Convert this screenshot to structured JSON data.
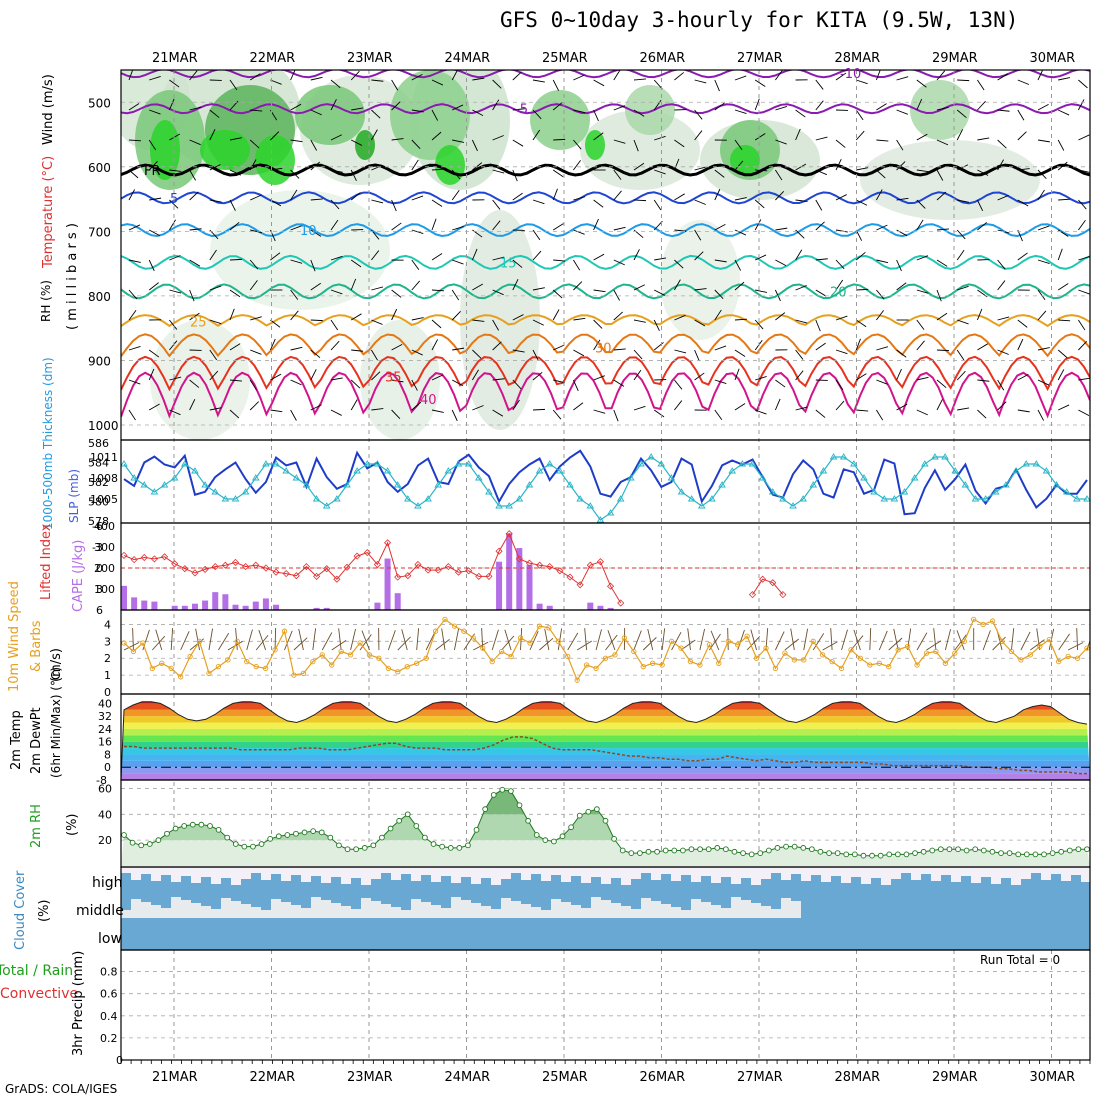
{
  "title": "GFS 0~10day 3-hourly for KITA (9.5W, 13N)",
  "credit": "GrADS: COLA/IGES",
  "dates": [
    "21MAR",
    "22MAR",
    "23MAR",
    "24MAR",
    "25MAR",
    "26MAR",
    "27MAR",
    "28MAR",
    "29MAR",
    "30MAR"
  ],
  "chart_data": [
    {
      "type": "heatmap",
      "panel": "upper-air",
      "ylabels": [
        "RH (%)",
        "Temperature (°C)",
        "Wind (m/s)",
        "( m i l l i b a r s )"
      ],
      "ylim": [
        1000,
        450
      ],
      "yticks": [
        500,
        600,
        700,
        800,
        900,
        1000
      ],
      "isotherms": [
        {
          "label": "-10",
          "p": 455,
          "color": "#8a1ab0"
        },
        {
          "label": "-5",
          "p": 510,
          "color": "#8a1ab0"
        },
        {
          "label": "FR",
          "p": 605,
          "color": "#000000"
        },
        {
          "label": "5",
          "p": 648,
          "color": "#1e46d2"
        },
        {
          "label": "10",
          "p": 698,
          "color": "#1e9be6"
        },
        {
          "label": "15",
          "p": 748,
          "color": "#1ec8b4"
        },
        {
          "label": "20",
          "p": 793,
          "color": "#1eb48c"
        },
        {
          "label": "25",
          "p": 840,
          "color": "#e6a01e"
        },
        {
          "label": "30",
          "p": 880,
          "color": "#e67814"
        },
        {
          "label": "35",
          "p": 925,
          "color": "#e6321e"
        },
        {
          "label": "40",
          "p": 960,
          "color": "#d2148c"
        }
      ],
      "rh_contours": [
        "30",
        "50",
        "60"
      ]
    },
    {
      "type": "line",
      "panel": "slp-thickness",
      "ylabels": [
        "1000-500mb Thickness (dm)",
        "SLP (mb)"
      ],
      "thickness_ticks": [
        578,
        580,
        582,
        584,
        586
      ],
      "slp_ticks": [
        1005,
        1008,
        1011
      ],
      "series": [
        {
          "values": [
            582.3,
            581.6,
            584,
            584.6,
            583.8,
            583.5,
            584.7,
            580.7,
            581,
            582.5,
            583.3,
            584,
            582.3,
            580.9,
            582,
            584.5,
            583.7,
            584,
            581.5,
            584.4,
            582.5,
            581.3,
            581.8,
            585,
            583.4,
            584,
            582,
            581,
            581.8,
            583.7,
            584.4,
            582,
            581.8,
            584.1,
            584.8,
            583.5,
            582.6,
            580,
            581.8,
            583,
            583.8,
            584.4,
            582.2,
            583.6,
            584.5,
            585.2,
            583.6,
            580.8,
            580.5,
            582,
            582.5,
            584.4,
            583.2,
            581.5,
            582,
            584.4,
            583.8,
            580,
            581.6,
            583.7,
            584.2,
            583.8,
            584.3,
            582.5,
            580.7,
            580.4,
            582.8,
            584.2,
            583.3,
            580.8,
            580.4,
            583.3,
            583,
            580.8,
            581.2,
            584.3,
            583.9,
            578.7,
            578.8,
            581.4,
            583.2,
            581.2,
            582.3,
            583.8,
            581.1,
            579.8,
            581.3,
            581.6,
            583.3,
            581.2,
            579.4,
            580.3,
            581.7,
            580.8,
            580.8,
            582.2
          ]
        },
        {
          "values": [
            1010,
            1008,
            1007,
            1006,
            1007,
            1008,
            1010,
            1009,
            1007,
            1006,
            1005,
            1005,
            1006,
            1008,
            1010,
            1010,
            1009,
            1008,
            1007,
            1005,
            1004,
            1005,
            1007,
            1009,
            1010,
            1010,
            1009,
            1007,
            1005,
            1004,
            1005,
            1007,
            1009,
            1010,
            1010,
            1008,
            1006,
            1004,
            1004,
            1005,
            1007,
            1009,
            1010,
            1009,
            1007,
            1005,
            1004,
            1002,
            1003,
            1005,
            1008,
            1010,
            1011,
            1010,
            1008,
            1006,
            1005,
            1004,
            1005,
            1007,
            1009,
            1010,
            1010,
            1008,
            1006,
            1005,
            1004,
            1005,
            1007,
            1009,
            1011,
            1011,
            1010,
            1008,
            1006,
            1005,
            1005,
            1006,
            1008,
            1010,
            1011,
            1011,
            1009,
            1007,
            1005,
            1005,
            1006,
            1007,
            1009,
            1010,
            1010,
            1009,
            1007,
            1006,
            1005,
            1005
          ]
        }
      ]
    },
    {
      "type": "bar",
      "panel": "cape-li",
      "ylabels": [
        "Lifted Index",
        "CAPE (J/kg)"
      ],
      "li_ticks": [
        -6,
        -3,
        0,
        3,
        6
      ],
      "cape_ticks": [
        100,
        200,
        300,
        400
      ],
      "series": [
        {
          "values": [
            115,
            60,
            45,
            40,
            0,
            20,
            20,
            30,
            45,
            85,
            75,
            25,
            20,
            40,
            55,
            25,
            0,
            0,
            0,
            10,
            10,
            0,
            0,
            0,
            0,
            35,
            245,
            80,
            0,
            0,
            0,
            0,
            0,
            0,
            0,
            0,
            0,
            230,
            365,
            295,
            215,
            30,
            20,
            0,
            0,
            0,
            35,
            20,
            10,
            0,
            0,
            0,
            0,
            0,
            0,
            0,
            0,
            0,
            0,
            0,
            0,
            0,
            0,
            0,
            0,
            0,
            0,
            0,
            0,
            0,
            0,
            0,
            0,
            0,
            0,
            0,
            0,
            0,
            0,
            0,
            0,
            0,
            0,
            0,
            0,
            0,
            0,
            0,
            0,
            0,
            0,
            0,
            0,
            0,
            0,
            0
          ]
        },
        {
          "values": [
            -1.8,
            -1.2,
            -1.5,
            -1.3,
            -1.6,
            -0.6,
            0.1,
            0.7,
            0.2,
            -0.2,
            -0.4,
            -0.8,
            -0.2,
            -0.4,
            0,
            0.6,
            0.8,
            1.1,
            -0.2,
            1.2,
            0.1,
            1.6,
            -0.1,
            -1.7,
            -2.2,
            -0.5,
            -3.6,
            1.3,
            1.1,
            -0.5,
            0.3,
            0.3,
            -0.2,
            0.6,
            0.4,
            1.2,
            1.2,
            -2.4,
            -4.9,
            -1.3,
            -0.7,
            -0.4,
            -0.2,
            0.4,
            1.3,
            2.4,
            -0.4,
            -0.9,
            2.6,
            5,
            null,
            null,
            null,
            null,
            null,
            null,
            null,
            null,
            null,
            null,
            null,
            null,
            3.8,
            1.6,
            2.1,
            3.8,
            null,
            null,
            null,
            null,
            null,
            null,
            null,
            null,
            null,
            null,
            null,
            null,
            null,
            null,
            null,
            null,
            null,
            null,
            null,
            null,
            null,
            null,
            null,
            null,
            null,
            null,
            null,
            null,
            null,
            null
          ]
        }
      ]
    },
    {
      "type": "line",
      "panel": "wind10m",
      "ylabels": [
        "10m Wind Speed",
        "& Barbs",
        "(m/s)"
      ],
      "yticks": [
        0,
        1,
        2,
        3,
        4
      ],
      "series": [
        {
          "values": [
            2.9,
            2.4,
            2.9,
            1.4,
            1.7,
            1.4,
            0.9,
            2.1,
            3.0,
            1.1,
            1.5,
            1.9,
            3.0,
            1.8,
            1.5,
            1.4,
            2.5,
            3.6,
            1.0,
            1.1,
            1.8,
            2.2,
            1.6,
            2.4,
            2.2,
            2.9,
            2.2,
            2.0,
            1.4,
            1.2,
            1.5,
            1.7,
            2.0,
            3.6,
            4.3,
            3.9,
            3.6,
            3.2,
            2.6,
            1.8,
            2.4,
            2.1,
            3.2,
            2.9,
            3.9,
            3.8,
            3.0,
            2.1,
            0.7,
            1.6,
            1.4,
            2.0,
            2.2,
            3.2,
            2.4,
            1.5,
            1.7,
            1.6,
            3.0,
            2.6,
            1.8,
            1.6,
            2.8,
            1.7,
            3.0,
            2.8,
            3.3,
            2.0,
            2.6,
            1.4,
            2.3,
            1.9,
            1.9,
            3.0,
            2.2,
            1.8,
            1.4,
            2.5,
            2.0,
            1.6,
            1.7,
            1.5,
            2.5,
            2.7,
            1.6,
            2.3,
            2.4,
            1.7,
            2.3,
            3.0,
            4.3,
            4.0,
            4.2,
            3.0,
            2.4,
            1.9,
            2.2,
            2.7,
            3.1,
            1.8,
            2.1,
            2.0,
            2.6
          ]
        }
      ]
    },
    {
      "type": "area",
      "panel": "temp2m",
      "ylabels": [
        "2m Temp",
        "2m DewPt",
        "(6hr Min/Max) (°C)"
      ],
      "yticks": [
        -8,
        0,
        8,
        16,
        24,
        32,
        40
      ],
      "series": [
        {
          "values": [
            36,
            39,
            41,
            41,
            40,
            37,
            33,
            30,
            29,
            30,
            33,
            37,
            40,
            41,
            41,
            40,
            36,
            32,
            29,
            28,
            30,
            33,
            37,
            40,
            41,
            41,
            40,
            36,
            32,
            29,
            28,
            30,
            33,
            37,
            40,
            41,
            41,
            40,
            36,
            32,
            29,
            28,
            30,
            33,
            37,
            40,
            41,
            41,
            40,
            36,
            32,
            29,
            28,
            30,
            33,
            37,
            40,
            41,
            41,
            40,
            36,
            32,
            29,
            28,
            30,
            33,
            37,
            40,
            41,
            41,
            40,
            36,
            32,
            29,
            28,
            30,
            33,
            37,
            40,
            41,
            41,
            40,
            36,
            32,
            29,
            28,
            30,
            33,
            37,
            40,
            41,
            41,
            40,
            36,
            32,
            29,
            28,
            30,
            32,
            36,
            38,
            39,
            38,
            34,
            30,
            28,
            27
          ]
        },
        {
          "values": [
            13,
            13,
            12,
            12,
            12,
            12,
            12,
            12,
            12,
            12,
            12,
            12,
            11,
            11,
            11,
            11,
            11,
            11,
            12,
            12,
            12,
            11,
            11,
            11,
            12,
            13,
            14,
            15,
            15,
            13,
            12,
            12,
            12,
            11,
            11,
            11,
            11,
            12,
            14,
            17,
            19,
            19,
            18,
            15,
            12,
            11,
            11,
            11,
            11,
            10,
            9,
            8,
            7,
            7,
            6,
            6,
            5,
            5,
            4,
            4,
            5,
            5,
            7,
            6,
            5,
            4,
            5,
            4,
            3,
            3,
            4,
            3,
            3,
            3,
            3,
            3,
            3,
            2,
            2,
            1,
            1,
            1,
            1,
            1,
            1,
            1,
            1,
            0,
            0,
            0,
            -1,
            -1,
            -2,
            -2,
            -3,
            -3,
            -3,
            -3,
            -4,
            -4
          ]
        }
      ]
    },
    {
      "type": "area",
      "panel": "rh2m",
      "ylabels": [
        "2m RH",
        "(%)"
      ],
      "yticks": [
        20,
        40,
        60
      ],
      "series": [
        {
          "values": [
            24,
            18,
            16,
            17,
            20,
            25,
            29,
            31,
            32,
            32,
            31,
            28,
            22,
            17,
            15,
            15,
            17,
            21,
            23,
            24,
            25,
            26,
            27,
            26,
            22,
            16,
            13,
            13,
            14,
            16,
            22,
            29,
            35,
            40,
            31,
            22,
            17,
            15,
            14,
            14,
            16,
            28,
            44,
            55,
            59,
            58,
            47,
            35,
            24,
            20,
            19,
            23,
            30,
            39,
            42,
            44,
            35,
            21,
            12,
            10,
            10,
            11,
            11,
            12,
            12,
            12,
            13,
            13,
            13,
            14,
            13,
            11,
            10,
            9,
            10,
            12,
            14,
            15,
            15,
            14,
            13,
            11,
            10,
            10,
            9,
            9,
            8,
            8,
            8,
            9,
            9,
            9,
            10,
            11,
            12,
            13,
            13,
            13,
            12,
            13,
            12,
            11,
            10,
            10,
            9,
            9,
            9,
            9,
            10,
            11,
            12,
            13,
            13
          ]
        }
      ]
    },
    {
      "type": "heatmap",
      "panel": "cloud",
      "ylabels": [
        "Cloud Cover",
        "(%)"
      ],
      "categories": [
        "high",
        "middle",
        "low"
      ]
    },
    {
      "type": "bar",
      "panel": "precip",
      "ylabels": [
        "Total / Rain",
        "Convective",
        "3hr Precip (mm)"
      ],
      "yticks": [
        0,
        0.2,
        0.4,
        0.6,
        0.8
      ],
      "annotation": "Run Total = 0",
      "values": []
    }
  ]
}
